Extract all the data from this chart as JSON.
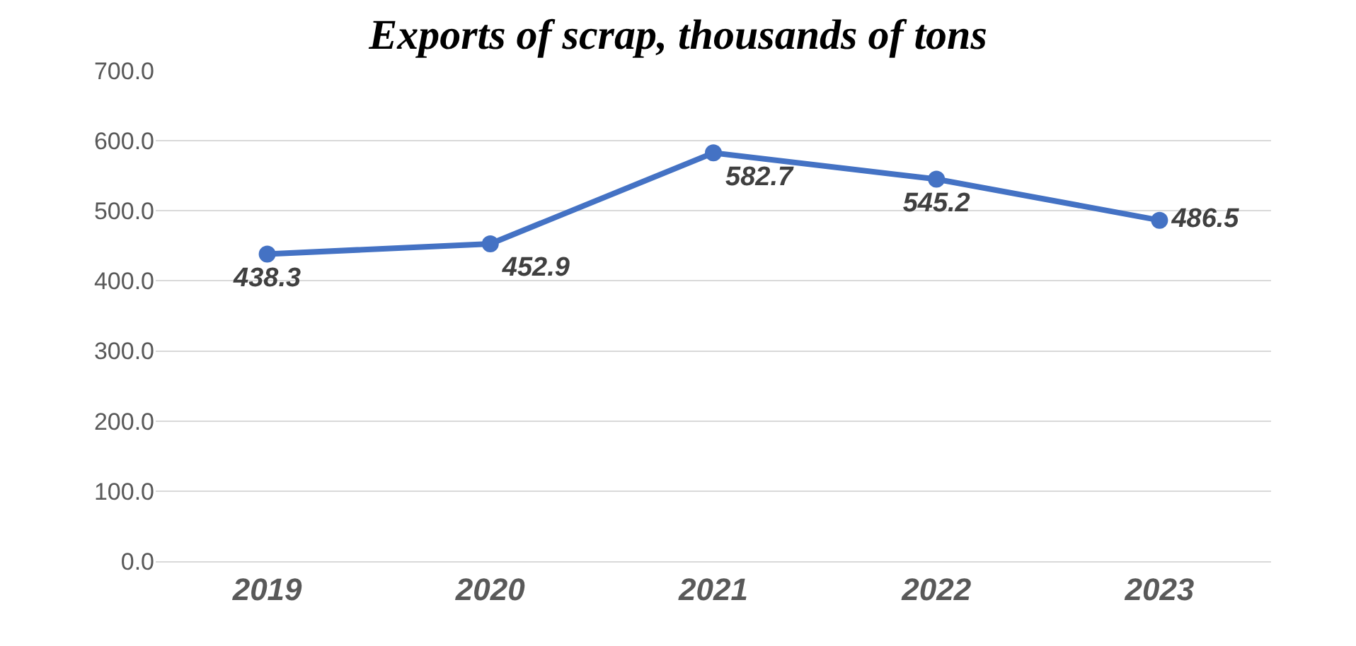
{
  "chart_data": {
    "type": "line",
    "title": "Exports of scrap, thousands of tons",
    "categories": [
      "2019",
      "2020",
      "2021",
      "2022",
      "2023"
    ],
    "series": [
      {
        "color": "#4472c4",
        "values": [
          438.3,
          452.9,
          582.7,
          545.2,
          486.5
        ]
      }
    ],
    "ylim": [
      0,
      700
    ],
    "yticks": [
      {
        "value": 0,
        "label": "0.0"
      },
      {
        "value": 100,
        "label": "100.0"
      },
      {
        "value": 200,
        "label": "200.0"
      },
      {
        "value": 300,
        "label": "300.0"
      },
      {
        "value": 400,
        "label": "400.0"
      },
      {
        "value": 500,
        "label": "500.0"
      },
      {
        "value": 600,
        "label": "600.0"
      },
      {
        "value": 700,
        "label": "700.0"
      }
    ],
    "grid": "y",
    "marker": "circle",
    "line_style": "solid",
    "data_labels": true
  }
}
